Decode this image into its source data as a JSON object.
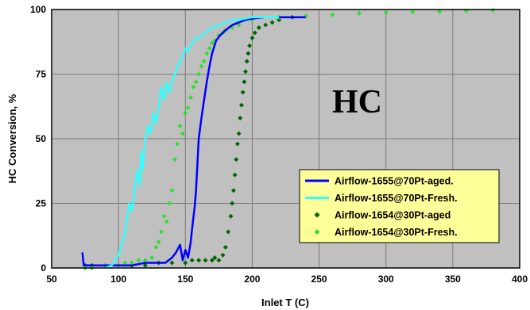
{
  "chart_data": {
    "type": "line",
    "title": "",
    "annotation": "HC",
    "xlabel": "Inlet T (C)",
    "ylabel": "HC Conversion, %",
    "xlim": [
      50,
      400
    ],
    "ylim": [
      0,
      100
    ],
    "xticks": [
      50,
      100,
      150,
      200,
      250,
      300,
      350,
      400
    ],
    "yticks": [
      0,
      25,
      50,
      75,
      100
    ],
    "grid": true,
    "plot_background": "#c0c0c0",
    "legend_position": "bottom-right",
    "legend_background": "#ffff99",
    "series": [
      {
        "name": "Airflow-1655@70Pt-aged.",
        "style": "line",
        "color": "#0000ff",
        "x": [
          73,
          74,
          75,
          80,
          90,
          100,
          110,
          120,
          130,
          135,
          140,
          143,
          146,
          148,
          150,
          152,
          154,
          155,
          157,
          158,
          160,
          162,
          164,
          166,
          168,
          170,
          173,
          176,
          180,
          185,
          190,
          195,
          200,
          210,
          220,
          240
        ],
        "y": [
          6,
          1,
          1,
          1,
          1,
          1,
          1,
          2,
          2,
          2,
          4,
          6,
          9,
          3,
          7,
          4,
          10,
          15,
          24,
          30,
          50,
          58,
          65,
          72,
          78,
          83,
          88,
          90,
          92,
          94,
          95,
          96,
          96.5,
          97,
          97,
          97
        ]
      },
      {
        "name": "Airflow-1655@70Pt-Fresh.",
        "style": "line",
        "color": "#33ffff",
        "x": [
          90,
          95,
          100,
          103,
          105,
          106,
          107,
          108,
          110,
          112,
          114,
          116,
          117,
          118,
          120,
          122,
          124,
          126,
          128,
          130,
          132,
          134,
          136,
          138,
          140,
          142,
          145,
          148,
          150,
          152,
          155,
          158,
          160,
          165,
          170,
          175,
          180,
          185,
          190,
          200,
          210,
          220
        ],
        "y": [
          0,
          1,
          5,
          10,
          14,
          18,
          21,
          25,
          22,
          30,
          38,
          32,
          45,
          38,
          50,
          55,
          52,
          60,
          56,
          62,
          70,
          65,
          72,
          68,
          72,
          75,
          79,
          82,
          85,
          84,
          87,
          89,
          89,
          91,
          93,
          94,
          95,
          96,
          96,
          97,
          97,
          97
        ]
      },
      {
        "name": "Airflow-1654@30Pt-aged",
        "style": "markers",
        "color": "#006600",
        "x": [
          75,
          80,
          90,
          100,
          110,
          120,
          130,
          140,
          150,
          155,
          160,
          165,
          170,
          172,
          175,
          178,
          180,
          182,
          184,
          185,
          186,
          187,
          188,
          189,
          190,
          191,
          192,
          193,
          194,
          195,
          196,
          197,
          198,
          200,
          202,
          205,
          210,
          215,
          220,
          230
        ],
        "y": [
          1,
          1,
          1,
          1,
          1,
          1,
          2,
          2,
          2,
          3,
          3,
          3,
          3,
          4,
          3,
          5,
          8,
          14,
          20,
          25,
          30,
          36,
          42,
          48,
          52,
          58,
          63,
          68,
          72,
          76,
          80,
          83,
          86,
          89,
          91,
          93,
          94,
          95,
          96,
          97
        ]
      },
      {
        "name": "Airflow-1654@30Pt-Fresh.",
        "style": "markers",
        "color": "#33dd33",
        "x": [
          75,
          80,
          90,
          100,
          105,
          110,
          115,
          120,
          125,
          128,
          130,
          132,
          134,
          136,
          138,
          140,
          142,
          144,
          146,
          148,
          150,
          152,
          154,
          156,
          158,
          160,
          162,
          164,
          166,
          168,
          170,
          172,
          175,
          178,
          180,
          185,
          190,
          200,
          220,
          240,
          260,
          280,
          300,
          320,
          340,
          360,
          380
        ],
        "y": [
          0,
          0,
          1,
          1,
          2,
          2,
          3,
          3,
          4,
          8,
          10,
          14,
          20,
          18,
          25,
          30,
          42,
          48,
          55,
          52,
          60,
          62,
          66,
          70,
          72,
          75,
          78,
          80,
          83,
          85,
          87,
          88,
          90,
          91,
          92,
          93,
          94,
          96,
          97,
          97.5,
          98,
          98.5,
          98.8,
          99,
          99.2,
          99.5,
          99.7
        ]
      }
    ]
  }
}
